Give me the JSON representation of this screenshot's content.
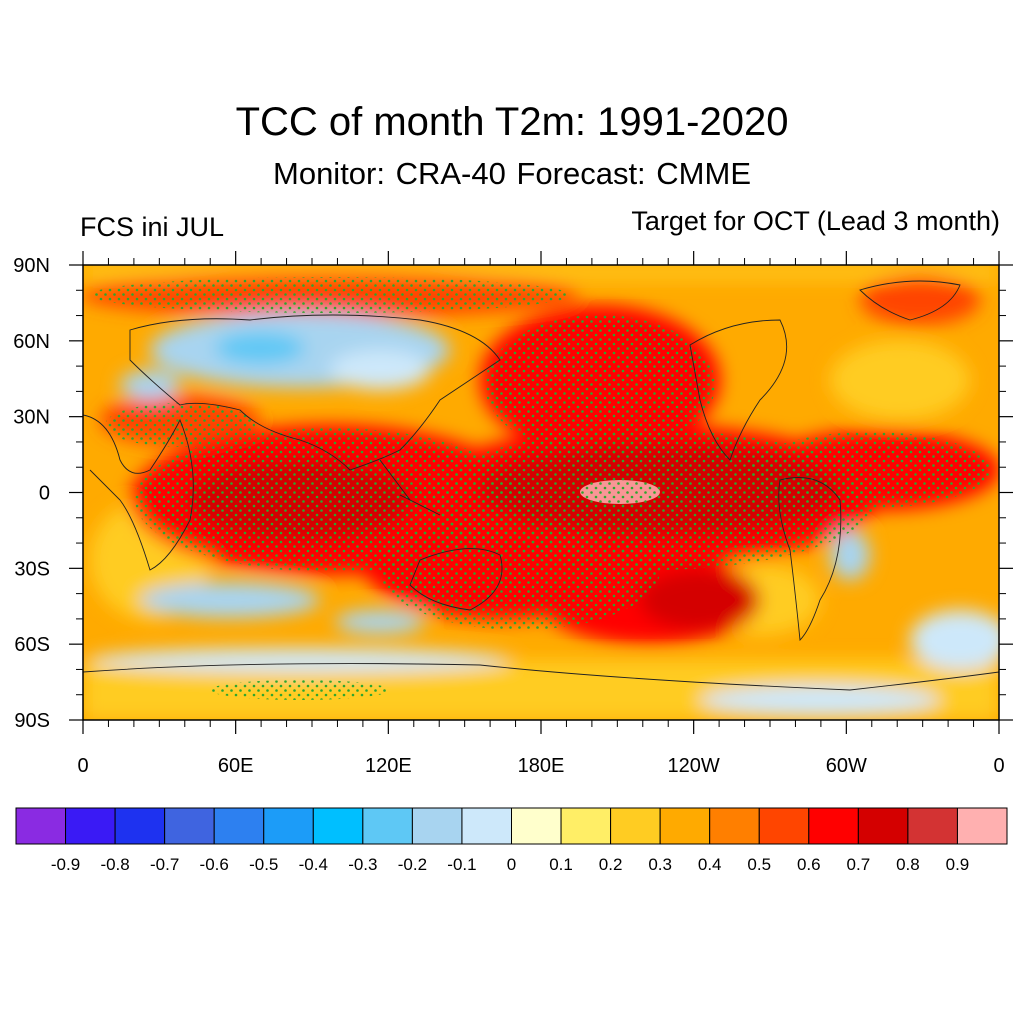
{
  "title": "TCC of month T2m: 1991-2020",
  "subtitle": "Monitor: CRA-40   Forecast: CMME",
  "left_label": "FCS ini JUL",
  "right_label": "Target for OCT (Lead 3 month)",
  "map": {
    "projection": "cylindrical equidistant",
    "lon_range": [
      0,
      360
    ],
    "lat_range": [
      -90,
      90
    ],
    "lat_ticks": [
      {
        "value": 90,
        "label": "90N"
      },
      {
        "value": 60,
        "label": "60N"
      },
      {
        "value": 30,
        "label": "30N"
      },
      {
        "value": 0,
        "label": "0"
      },
      {
        "value": -30,
        "label": "30S"
      },
      {
        "value": -60,
        "label": "60S"
      },
      {
        "value": -90,
        "label": "90S"
      }
    ],
    "lon_ticks": [
      {
        "value": 0,
        "label": "0"
      },
      {
        "value": 60,
        "label": "60E"
      },
      {
        "value": 120,
        "label": "120E"
      },
      {
        "value": 180,
        "label": "180E"
      },
      {
        "value": 240,
        "label": "120W"
      },
      {
        "value": 300,
        "label": "60W"
      },
      {
        "value": 360,
        "label": "0"
      }
    ],
    "stippling_color": "#2ea52e"
  },
  "colorbar": {
    "colors": [
      "#8a2be2",
      "#3a1af5",
      "#1e32f0",
      "#3f64e0",
      "#2d80f0",
      "#1c9cf8",
      "#00bfff",
      "#5ec8f5",
      "#a8d4f0",
      "#cde8fa",
      "#ffffcc",
      "#ffee66",
      "#ffcc22",
      "#ffaa00",
      "#ff7f00",
      "#ff4500",
      "#ff0000",
      "#d40000",
      "#d33333",
      "#ffb0b0"
    ],
    "labels": [
      "-0.9",
      "-0.8",
      "-0.7",
      "-0.6",
      "-0.5",
      "-0.4",
      "-0.3",
      "-0.2",
      "-0.1",
      "0",
      "0.1",
      "0.2",
      "0.3",
      "0.4",
      "0.5",
      "0.6",
      "0.7",
      "0.8",
      "0.9"
    ]
  }
}
